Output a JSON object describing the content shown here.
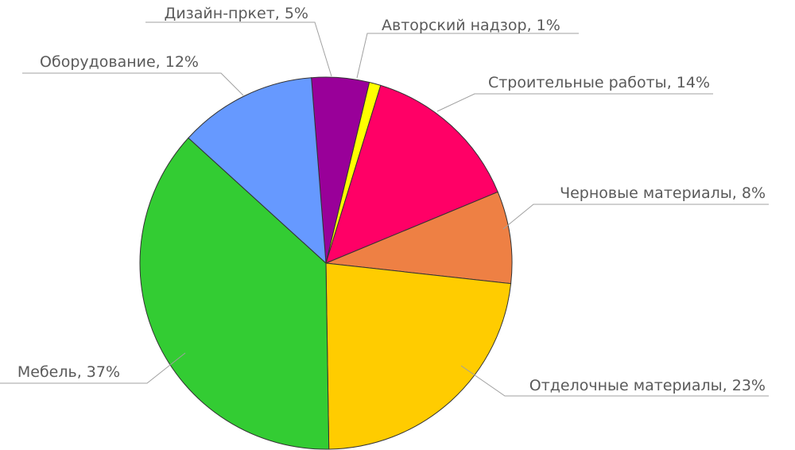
{
  "chart_data": {
    "type": "pie",
    "title": "",
    "slices": [
      {
        "label": "Дизайн-пркет, 5%",
        "value": 5,
        "color": "#990099"
      },
      {
        "label": "Авторский надзор, 1%",
        "value": 1,
        "color": "#ffff00"
      },
      {
        "label": "Строительные работы, 14%",
        "value": 14,
        "color": "#ff0066"
      },
      {
        "label": "Черновые материалы, 8%",
        "value": 8,
        "color": "#ee8044"
      },
      {
        "label": "Отделочные материалы, 23%",
        "value": 23,
        "color": "#ffcc00"
      },
      {
        "label": "Мебель, 37%",
        "value": 37,
        "color": "#33cc33"
      },
      {
        "label": "Оборудование, 12%",
        "value": 12,
        "color": "#6699ff"
      }
    ]
  }
}
